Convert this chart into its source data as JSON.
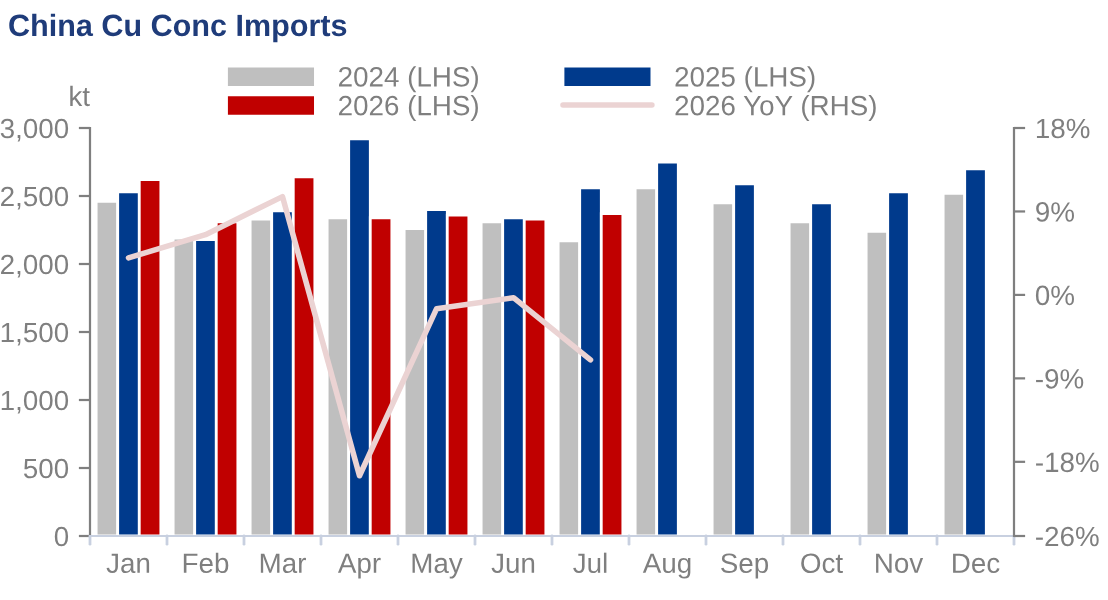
{
  "chart_data": {
    "type": "bar",
    "title": "China Cu Conc Imports",
    "ylabel": "kt",
    "categories": [
      "Jan",
      "Feb",
      "Mar",
      "Apr",
      "May",
      "Jun",
      "Jul",
      "Aug",
      "Sep",
      "Oct",
      "Nov",
      "Dec"
    ],
    "series": [
      {
        "name": "2024 (LHS)",
        "color": "#bfbfbf",
        "values": [
          2460,
          2190,
          2330,
          2340,
          2260,
          2310,
          2170,
          2560,
          2450,
          2310,
          2240,
          2520
        ]
      },
      {
        "name": "2025 (LHS)",
        "color": "#003a8c",
        "values": [
          2530,
          2180,
          2390,
          2920,
          2400,
          2340,
          2560,
          2750,
          2590,
          2450,
          2530,
          2700
        ]
      },
      {
        "name": "2026 (LHS)",
        "color": "#c00000",
        "values": [
          2620,
          2310,
          2640,
          2340,
          2360,
          2330,
          2370,
          null,
          null,
          null,
          null,
          null
        ]
      },
      {
        "name": "2026 YoY (RHS)",
        "type": "line",
        "axis": "y2",
        "color": "#ebd3d3",
        "values": [
          4.0,
          6.5,
          10.6,
          -19.5,
          -1.5,
          -0.3,
          -7.0,
          null,
          null,
          null,
          null,
          null
        ]
      }
    ],
    "ylim": [
      0,
      3000
    ],
    "yticks": [
      0,
      {
        "value": 500,
        "label": "500"
      },
      {
        "value": 1000,
        "label": "1,000"
      },
      {
        "value": 1500,
        "label": "1,500"
      },
      {
        "value": 2000,
        "label": "2,000"
      },
      {
        "value": 2500,
        "label": "2,500"
      },
      {
        "value": 3000,
        "label": "3,000"
      }
    ],
    "y2lim": [
      -26,
      18
    ],
    "y2ticks": [
      {
        "value": -26,
        "label": "-26%"
      },
      {
        "value": -18,
        "label": "-18%"
      },
      {
        "value": -9,
        "label": "-9%"
      },
      {
        "value": 0,
        "label": "0%"
      },
      {
        "value": 9,
        "label": "9%"
      },
      {
        "value": 18,
        "label": "18%"
      }
    ],
    "legend": "top",
    "grid": false
  }
}
